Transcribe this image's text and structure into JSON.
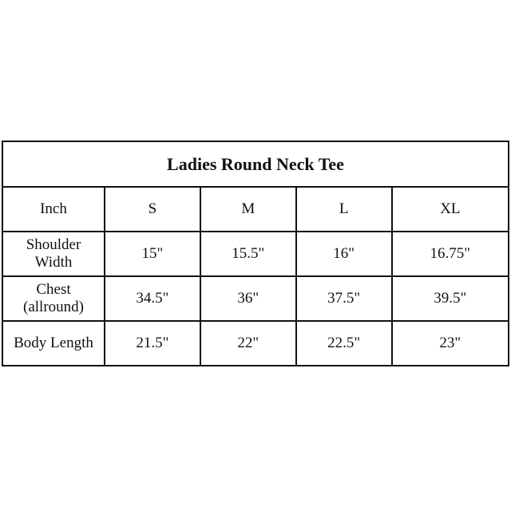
{
  "title": "Ladies Round Neck Tee",
  "header": [
    "Inch",
    "S",
    "M",
    "L",
    "XL"
  ],
  "rows": [
    {
      "label_lines": [
        "Shoulder",
        "Width"
      ],
      "values": [
        "15\"",
        "15.5\"",
        "16\"",
        "16.75\""
      ]
    },
    {
      "label_lines": [
        "Chest",
        "(allround)"
      ],
      "values": [
        "34.5\"",
        "36\"",
        "37.5\"",
        "39.5\""
      ]
    },
    {
      "label_lines": [
        "Body Length"
      ],
      "values": [
        "21.5\"",
        "22\"",
        "22.5\"",
        "23\""
      ]
    }
  ]
}
